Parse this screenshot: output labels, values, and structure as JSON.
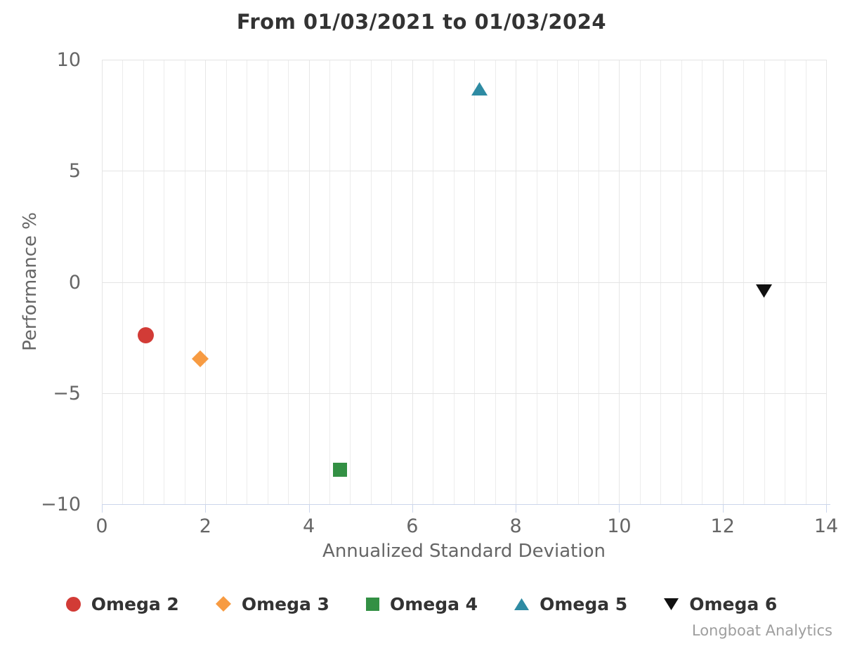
{
  "title": "From 01/03/2021 to 01/03/2024",
  "credits": "Longboat Analytics",
  "colors": {
    "title_text": "#333333",
    "tick_text": "#666666",
    "axis_title_text": "#666666",
    "legend_text": "#333333",
    "credits_text": "#9e9e9e",
    "axis_line": "#ccd6eb",
    "grid_major": "#e6e6e6",
    "grid_minor": "#ececec"
  },
  "chart_data": {
    "type": "scatter",
    "title": "From 01/03/2021 to 01/03/2024",
    "xlabel": "Annualized Standard Deviation",
    "ylabel": "Performance %",
    "xlim": [
      0,
      14
    ],
    "ylim": [
      -10,
      10
    ],
    "x_ticks": [
      0,
      2,
      4,
      6,
      8,
      10,
      12,
      14
    ],
    "y_ticks": [
      10,
      5,
      0,
      -5,
      -10
    ],
    "x_minor_step": 0.4,
    "grid": true,
    "legend_position": "bottom",
    "series": [
      {
        "name": "Omega 2",
        "marker": "circle",
        "color": "#d23b36",
        "points": [
          {
            "x": 0.85,
            "y": -2.4
          }
        ]
      },
      {
        "name": "Omega 3",
        "marker": "diamond",
        "color": "#f79b42",
        "points": [
          {
            "x": 1.9,
            "y": -3.45
          }
        ]
      },
      {
        "name": "Omega 4",
        "marker": "square",
        "color": "#339044",
        "points": [
          {
            "x": 4.6,
            "y": -8.45
          }
        ]
      },
      {
        "name": "Omega 5",
        "marker": "triangle-up",
        "color": "#2e8ba3",
        "points": [
          {
            "x": 7.3,
            "y": 8.7
          }
        ]
      },
      {
        "name": "Omega 6",
        "marker": "triangle-down",
        "color": "#101010",
        "points": [
          {
            "x": 12.8,
            "y": -0.4
          }
        ]
      }
    ]
  }
}
